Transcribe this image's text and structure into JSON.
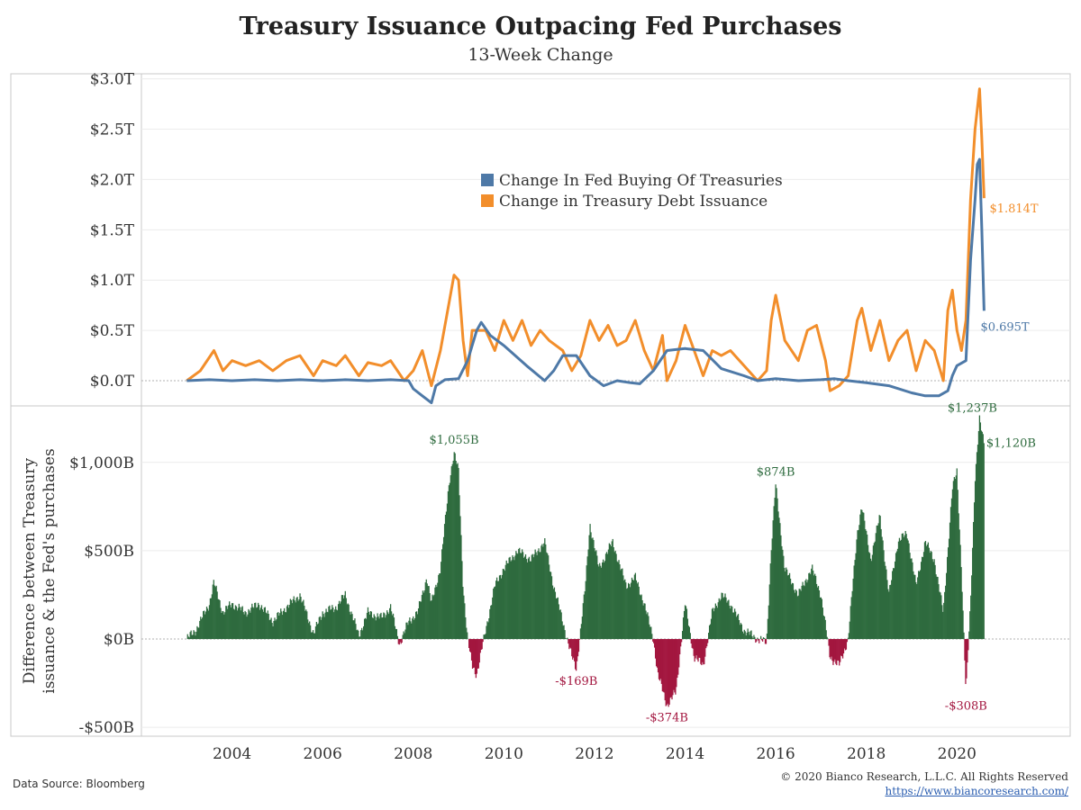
{
  "title": "Treasury Issuance Outpacing Fed Purchases",
  "subtitle": "13-Week Change",
  "footer": {
    "source": "Data Source: Bloomberg",
    "copyright": "© 2020 Bianco Research, L.L.C. All Rights Reserved",
    "url": "https://www.biancoresearch.com/"
  },
  "colors": {
    "fed": "#4e79a7",
    "issuance": "#f28e2b",
    "positive": "#2e6b3e",
    "negative": "#a3163f"
  },
  "chart_data": [
    {
      "type": "line",
      "title": "",
      "y_tick_labels": [
        "$0.0T",
        "$0.5T",
        "$1.0T",
        "$1.5T",
        "$2.0T",
        "$2.5T",
        "$3.0T"
      ],
      "y_ticks": [
        0,
        0.5,
        1.0,
        1.5,
        2.0,
        2.5,
        3.0
      ],
      "ylim": [
        -0.25,
        3.05
      ],
      "xlim": [
        2002.0,
        2022.5
      ],
      "legend_placement": "center",
      "series": [
        {
          "name": "Change In Fed Buying Of Treasuries",
          "color_key": "fed",
          "end_label": "$0.695T",
          "points": [
            [
              2003.0,
              0.0
            ],
            [
              2003.5,
              0.01
            ],
            [
              2004.0,
              0.0
            ],
            [
              2004.5,
              0.01
            ],
            [
              2005.0,
              0.0
            ],
            [
              2005.5,
              0.01
            ],
            [
              2006.0,
              0.0
            ],
            [
              2006.5,
              0.01
            ],
            [
              2007.0,
              0.0
            ],
            [
              2007.5,
              0.01
            ],
            [
              2007.9,
              0.0
            ],
            [
              2008.0,
              -0.08
            ],
            [
              2008.2,
              -0.15
            ],
            [
              2008.4,
              -0.22
            ],
            [
              2008.5,
              -0.05
            ],
            [
              2008.7,
              0.01
            ],
            [
              2009.0,
              0.02
            ],
            [
              2009.2,
              0.2
            ],
            [
              2009.4,
              0.5
            ],
            [
              2009.5,
              0.58
            ],
            [
              2009.7,
              0.45
            ],
            [
              2010.0,
              0.35
            ],
            [
              2010.5,
              0.15
            ],
            [
              2010.9,
              0.0
            ],
            [
              2011.1,
              0.1
            ],
            [
              2011.3,
              0.25
            ],
            [
              2011.6,
              0.25
            ],
            [
              2011.9,
              0.05
            ],
            [
              2012.2,
              -0.05
            ],
            [
              2012.5,
              0.0
            ],
            [
              2012.8,
              -0.02
            ],
            [
              2013.0,
              -0.03
            ],
            [
              2013.3,
              0.1
            ],
            [
              2013.6,
              0.3
            ],
            [
              2014.0,
              0.32
            ],
            [
              2014.4,
              0.3
            ],
            [
              2014.8,
              0.12
            ],
            [
              2015.3,
              0.05
            ],
            [
              2015.6,
              0.0
            ],
            [
              2016.0,
              0.02
            ],
            [
              2016.5,
              0.0
            ],
            [
              2017.0,
              0.01
            ],
            [
              2017.3,
              0.02
            ],
            [
              2017.6,
              0.0
            ],
            [
              2018.0,
              -0.02
            ],
            [
              2018.5,
              -0.05
            ],
            [
              2019.0,
              -0.12
            ],
            [
              2019.3,
              -0.15
            ],
            [
              2019.6,
              -0.15
            ],
            [
              2019.8,
              -0.1
            ],
            [
              2019.9,
              0.05
            ],
            [
              2020.0,
              0.15
            ],
            [
              2020.2,
              0.2
            ],
            [
              2020.3,
              1.2
            ],
            [
              2020.4,
              1.8
            ],
            [
              2020.45,
              2.15
            ],
            [
              2020.5,
              2.2
            ],
            [
              2020.55,
              1.5
            ],
            [
              2020.6,
              0.695
            ]
          ]
        },
        {
          "name": "Change in Treasury Debt Issuance",
          "color_key": "issuance",
          "end_label": "$1.814T",
          "points": [
            [
              2003.0,
              0.0
            ],
            [
              2003.3,
              0.1
            ],
            [
              2003.6,
              0.3
            ],
            [
              2003.8,
              0.1
            ],
            [
              2004.0,
              0.2
            ],
            [
              2004.3,
              0.15
            ],
            [
              2004.6,
              0.2
            ],
            [
              2004.9,
              0.1
            ],
            [
              2005.2,
              0.2
            ],
            [
              2005.5,
              0.25
            ],
            [
              2005.8,
              0.05
            ],
            [
              2006.0,
              0.2
            ],
            [
              2006.3,
              0.15
            ],
            [
              2006.5,
              0.25
            ],
            [
              2006.8,
              0.05
            ],
            [
              2007.0,
              0.18
            ],
            [
              2007.3,
              0.15
            ],
            [
              2007.5,
              0.2
            ],
            [
              2007.8,
              0.0
            ],
            [
              2008.0,
              0.1
            ],
            [
              2008.2,
              0.3
            ],
            [
              2008.4,
              -0.05
            ],
            [
              2008.6,
              0.3
            ],
            [
              2008.8,
              0.8
            ],
            [
              2008.9,
              1.05
            ],
            [
              2009.0,
              1.0
            ],
            [
              2009.1,
              0.4
            ],
            [
              2009.2,
              0.05
            ],
            [
              2009.3,
              0.5
            ],
            [
              2009.6,
              0.5
            ],
            [
              2009.8,
              0.3
            ],
            [
              2010.0,
              0.6
            ],
            [
              2010.2,
              0.4
            ],
            [
              2010.4,
              0.6
            ],
            [
              2010.6,
              0.35
            ],
            [
              2010.8,
              0.5
            ],
            [
              2011.0,
              0.4
            ],
            [
              2011.3,
              0.3
            ],
            [
              2011.5,
              0.1
            ],
            [
              2011.7,
              0.25
            ],
            [
              2011.9,
              0.6
            ],
            [
              2012.1,
              0.4
            ],
            [
              2012.3,
              0.55
            ],
            [
              2012.5,
              0.35
            ],
            [
              2012.7,
              0.4
            ],
            [
              2012.9,
              0.6
            ],
            [
              2013.1,
              0.3
            ],
            [
              2013.3,
              0.1
            ],
            [
              2013.5,
              0.45
            ],
            [
              2013.6,
              0.0
            ],
            [
              2013.8,
              0.2
            ],
            [
              2014.0,
              0.55
            ],
            [
              2014.2,
              0.3
            ],
            [
              2014.4,
              0.05
            ],
            [
              2014.6,
              0.3
            ],
            [
              2014.8,
              0.25
            ],
            [
              2015.0,
              0.3
            ],
            [
              2015.3,
              0.15
            ],
            [
              2015.6,
              0.0
            ],
            [
              2015.8,
              0.1
            ],
            [
              2015.9,
              0.6
            ],
            [
              2016.0,
              0.85
            ],
            [
              2016.2,
              0.4
            ],
            [
              2016.5,
              0.2
            ],
            [
              2016.7,
              0.5
            ],
            [
              2016.9,
              0.55
            ],
            [
              2017.1,
              0.2
            ],
            [
              2017.2,
              -0.1
            ],
            [
              2017.4,
              -0.05
            ],
            [
              2017.6,
              0.05
            ],
            [
              2017.8,
              0.6
            ],
            [
              2017.9,
              0.72
            ],
            [
              2018.1,
              0.3
            ],
            [
              2018.3,
              0.6
            ],
            [
              2018.5,
              0.2
            ],
            [
              2018.7,
              0.4
            ],
            [
              2018.9,
              0.5
            ],
            [
              2019.1,
              0.1
            ],
            [
              2019.3,
              0.4
            ],
            [
              2019.5,
              0.3
            ],
            [
              2019.7,
              0.0
            ],
            [
              2019.8,
              0.7
            ],
            [
              2019.9,
              0.9
            ],
            [
              2020.0,
              0.5
            ],
            [
              2020.1,
              0.3
            ],
            [
              2020.2,
              0.6
            ],
            [
              2020.3,
              1.8
            ],
            [
              2020.4,
              2.5
            ],
            [
              2020.5,
              2.9
            ],
            [
              2020.55,
              2.4
            ],
            [
              2020.6,
              1.814
            ]
          ]
        }
      ]
    },
    {
      "type": "bar",
      "title": "",
      "ylabel_line1": "Difference between Treasury",
      "ylabel_line2": "issuance & the Fed's purchases",
      "y_tick_labels": [
        "-$500B",
        "$0B",
        "$500B",
        "$1,000B"
      ],
      "y_ticks": [
        -500,
        0,
        500,
        1000
      ],
      "ylim": [
        -550,
        1320
      ],
      "xlim": [
        2002.0,
        2022.5
      ],
      "x_tick_labels": [
        "2004",
        "2006",
        "2008",
        "2010",
        "2012",
        "2014",
        "2016",
        "2018",
        "2020"
      ],
      "x_ticks": [
        2004,
        2006,
        2008,
        2010,
        2012,
        2014,
        2016,
        2018,
        2020
      ],
      "annotations": [
        {
          "text": "$1,055B",
          "x": 2008.9,
          "y": 1055,
          "sign": "positive"
        },
        {
          "text": "-$169B",
          "x": 2011.6,
          "y": -169,
          "sign": "negative"
        },
        {
          "text": "-$374B",
          "x": 2013.6,
          "y": -374,
          "sign": "negative"
        },
        {
          "text": "$874B",
          "x": 2016.0,
          "y": 874,
          "sign": "positive"
        },
        {
          "text": "$1,237B",
          "x": 2020.5,
          "y": 1237,
          "sign": "positive"
        },
        {
          "text": "$1,120B",
          "x": 2020.6,
          "y": 1120,
          "sign": "positive"
        },
        {
          "text": "-$308B",
          "x": 2020.2,
          "y": -308,
          "sign": "negative"
        }
      ],
      "difference_points": [
        [
          2003.0,
          0
        ],
        [
          2003.2,
          50
        ],
        [
          2003.5,
          200
        ],
        [
          2003.6,
          320
        ],
        [
          2003.8,
          150
        ],
        [
          2004.0,
          200
        ],
        [
          2004.3,
          150
        ],
        [
          2004.6,
          200
        ],
        [
          2004.9,
          100
        ],
        [
          2005.2,
          180
        ],
        [
          2005.5,
          250
        ],
        [
          2005.8,
          30
        ],
        [
          2006.0,
          150
        ],
        [
          2006.3,
          180
        ],
        [
          2006.5,
          250
        ],
        [
          2006.8,
          20
        ],
        [
          2007.0,
          150
        ],
        [
          2007.3,
          120
        ],
        [
          2007.5,
          180
        ],
        [
          2007.7,
          -30
        ],
        [
          2007.9,
          100
        ],
        [
          2008.1,
          150
        ],
        [
          2008.3,
          350
        ],
        [
          2008.4,
          200
        ],
        [
          2008.6,
          400
        ],
        [
          2008.8,
          900
        ],
        [
          2008.9,
          1055
        ],
        [
          2009.0,
          950
        ],
        [
          2009.1,
          300
        ],
        [
          2009.2,
          0
        ],
        [
          2009.3,
          -150
        ],
        [
          2009.4,
          -200
        ],
        [
          2009.6,
          50
        ],
        [
          2009.8,
          300
        ],
        [
          2010.0,
          400
        ],
        [
          2010.3,
          500
        ],
        [
          2010.6,
          450
        ],
        [
          2010.9,
          550
        ],
        [
          2011.1,
          300
        ],
        [
          2011.3,
          100
        ],
        [
          2011.5,
          -100
        ],
        [
          2011.6,
          -169
        ],
        [
          2011.8,
          300
        ],
        [
          2011.9,
          650
        ],
        [
          2012.1,
          400
        ],
        [
          2012.4,
          550
        ],
        [
          2012.7,
          300
        ],
        [
          2012.9,
          350
        ],
        [
          2013.1,
          200
        ],
        [
          2013.3,
          0
        ],
        [
          2013.4,
          -200
        ],
        [
          2013.6,
          -374
        ],
        [
          2013.8,
          -300
        ],
        [
          2013.9,
          -50
        ],
        [
          2014.0,
          200
        ],
        [
          2014.2,
          -100
        ],
        [
          2014.4,
          -150
        ],
        [
          2014.6,
          150
        ],
        [
          2014.8,
          250
        ],
        [
          2015.0,
          200
        ],
        [
          2015.3,
          50
        ],
        [
          2015.6,
          0
        ],
        [
          2015.8,
          -20
        ],
        [
          2015.9,
          500
        ],
        [
          2016.0,
          874
        ],
        [
          2016.2,
          400
        ],
        [
          2016.5,
          250
        ],
        [
          2016.8,
          400
        ],
        [
          2017.0,
          250
        ],
        [
          2017.2,
          -100
        ],
        [
          2017.4,
          -150
        ],
        [
          2017.6,
          0
        ],
        [
          2017.8,
          600
        ],
        [
          2017.9,
          750
        ],
        [
          2018.1,
          450
        ],
        [
          2018.3,
          700
        ],
        [
          2018.5,
          250
        ],
        [
          2018.7,
          550
        ],
        [
          2018.9,
          600
        ],
        [
          2019.1,
          300
        ],
        [
          2019.3,
          550
        ],
        [
          2019.5,
          450
        ],
        [
          2019.7,
          150
        ],
        [
          2019.9,
          850
        ],
        [
          2020.0,
          950
        ],
        [
          2020.1,
          400
        ],
        [
          2020.2,
          -308
        ],
        [
          2020.3,
          200
        ],
        [
          2020.4,
          900
        ],
        [
          2020.5,
          1237
        ],
        [
          2020.6,
          1120
        ]
      ]
    }
  ]
}
